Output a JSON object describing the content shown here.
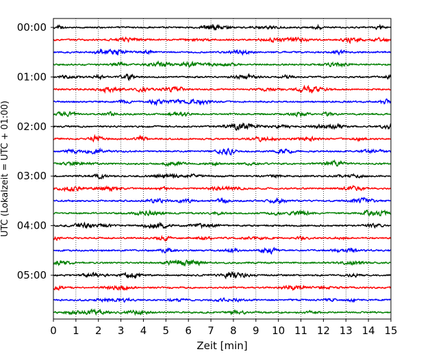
{
  "chart_data": {
    "type": "line",
    "title": "",
    "xlabel": "Zeit  [min]",
    "ylabel": "UTC (Lokalzeit = UTC + 01:00)",
    "xlim": [
      0,
      15
    ],
    "x_ticks": [
      "0",
      "1",
      "2",
      "3",
      "4",
      "5",
      "6",
      "7",
      "8",
      "9",
      "10",
      "11",
      "12",
      "13",
      "14",
      "15"
    ],
    "y_ticks": [
      "00:00",
      "01:00",
      "02:00",
      "03:00",
      "04:00",
      "05:00"
    ],
    "trace_interval_min": 15,
    "trace_count": 24,
    "trace_colors": [
      "#000000",
      "#ff0000",
      "#0000ff",
      "#008000"
    ],
    "grid": {
      "x": true,
      "y": false,
      "style": "dotted"
    },
    "legend": "none"
  }
}
